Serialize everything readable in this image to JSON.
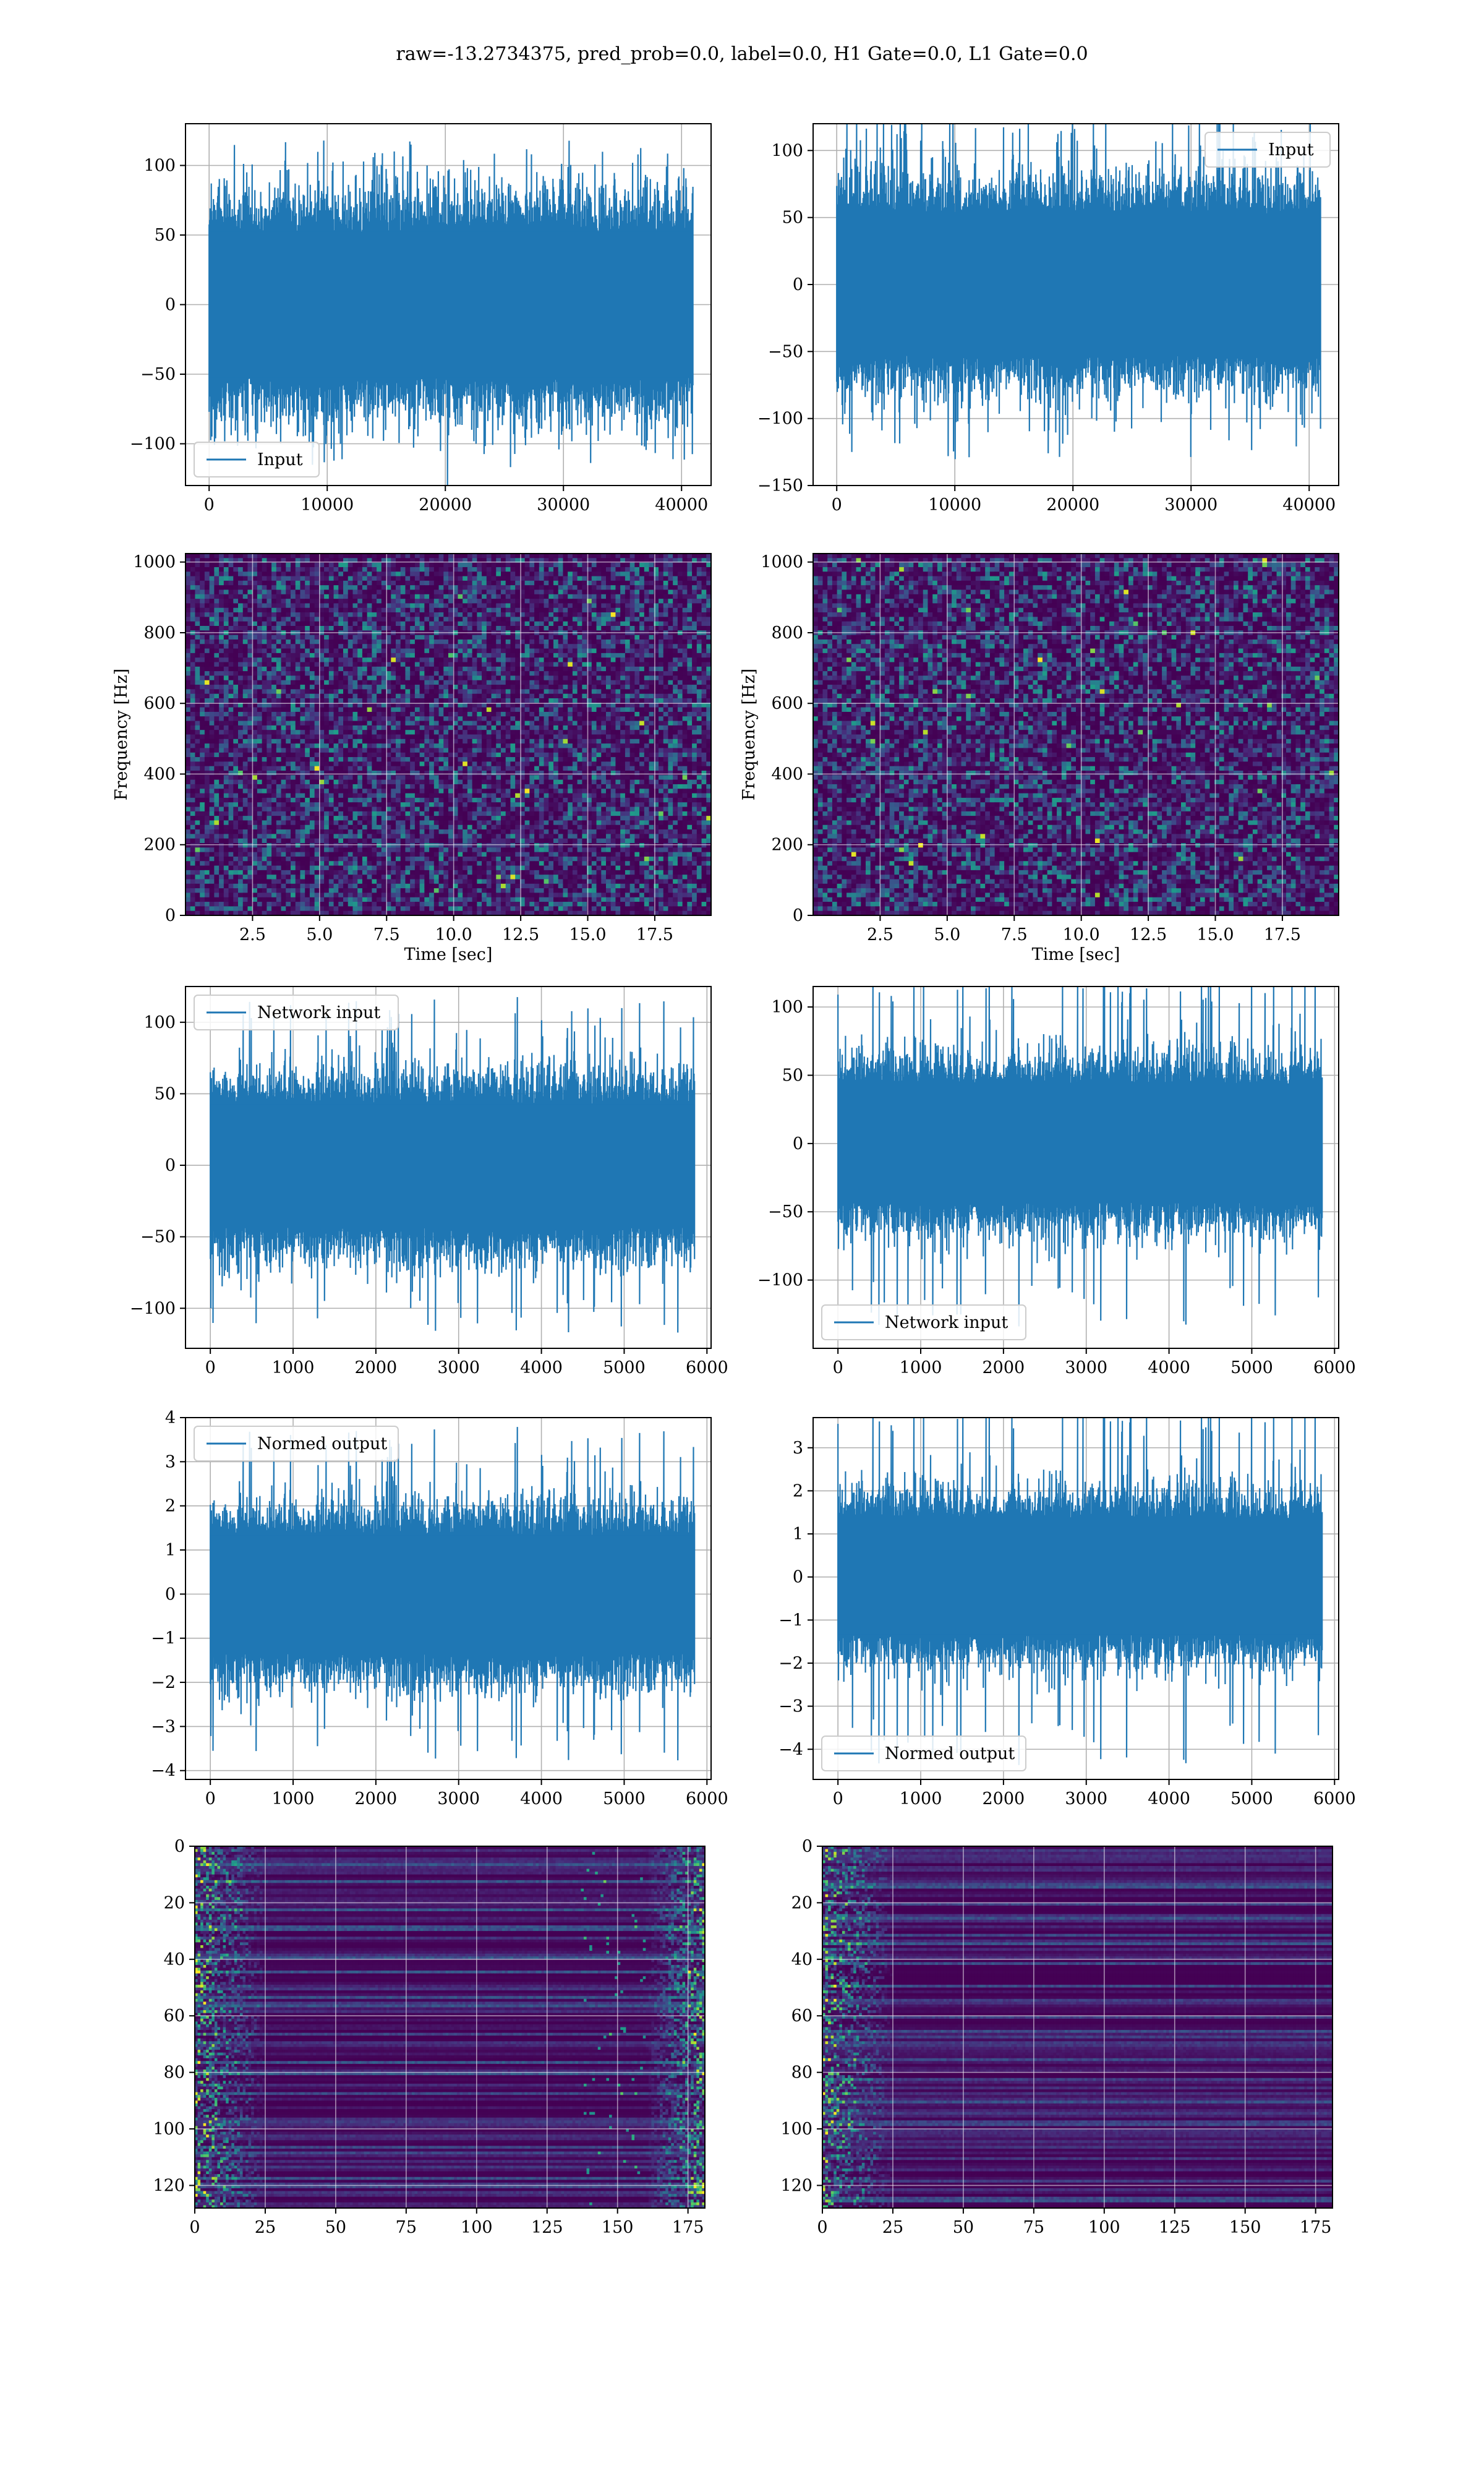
{
  "figure": {
    "title": "raw=-13.2734375, pred_prob=0.0, label=0.0, H1 Gate=0.0, L1 Gate=0.0",
    "line_color": "#1f77b4"
  },
  "chart_data": [
    {
      "id": "input-h1",
      "type": "line",
      "series": [
        {
          "name": "Input"
        }
      ],
      "legend": "lower-left",
      "grid": true,
      "xlim": [
        -2000,
        42500
      ],
      "xticks": [
        0,
        10000,
        20000,
        30000,
        40000
      ],
      "xticklabels": [
        "0",
        "10000",
        "20000",
        "30000",
        "40000"
      ],
      "ylim": [
        -130,
        130
      ],
      "yticks": [
        -100,
        -50,
        0,
        50,
        100
      ],
      "yticklabels": [
        "−100",
        "−50",
        "0",
        "50",
        "100"
      ],
      "x_range": [
        0,
        40960
      ],
      "n": 900,
      "amp": 55,
      "spike": 118,
      "seed": 11,
      "xlabel": "",
      "ylabel": ""
    },
    {
      "id": "input-l1",
      "type": "line",
      "series": [
        {
          "name": "Input"
        }
      ],
      "legend": "upper-right",
      "grid": true,
      "xlim": [
        -2000,
        42500
      ],
      "xticks": [
        0,
        10000,
        20000,
        30000,
        40000
      ],
      "xticklabels": [
        "0",
        "10000",
        "20000",
        "30000",
        "40000"
      ],
      "ylim": [
        -150,
        120
      ],
      "yticks": [
        -150,
        -100,
        -50,
        0,
        50,
        100
      ],
      "yticklabels": [
        "−150",
        "−100",
        "−50",
        "0",
        "50",
        "100"
      ],
      "x_range": [
        0,
        40960
      ],
      "n": 900,
      "amp": 55,
      "spike": 135,
      "seed": 23,
      "xlabel": "",
      "ylabel": ""
    },
    {
      "id": "spec-h1",
      "type": "heatmap",
      "grid": true,
      "xlim": [
        0,
        19.6
      ],
      "xticks": [
        2.5,
        5.0,
        7.5,
        10.0,
        12.5,
        15.0,
        17.5
      ],
      "xticklabels": [
        "2.5",
        "5.0",
        "7.5",
        "10.0",
        "12.5",
        "15.0",
        "17.5"
      ],
      "ylim": [
        0,
        1024
      ],
      "yticks": [
        0,
        200,
        400,
        600,
        800,
        1000
      ],
      "yticklabels": [
        "0",
        "200",
        "400",
        "600",
        "800",
        "1000"
      ],
      "xlabel": "Time [sec]",
      "ylabel": "Frequency [Hz]",
      "cols": 110,
      "rows": 80,
      "style": "noise",
      "seed": 31
    },
    {
      "id": "spec-l1",
      "type": "heatmap",
      "grid": true,
      "xlim": [
        0,
        19.6
      ],
      "xticks": [
        2.5,
        5.0,
        7.5,
        10.0,
        12.5,
        15.0,
        17.5
      ],
      "xticklabels": [
        "2.5",
        "5.0",
        "7.5",
        "10.0",
        "12.5",
        "15.0",
        "17.5"
      ],
      "ylim": [
        0,
        1024
      ],
      "yticks": [
        0,
        200,
        400,
        600,
        800,
        1000
      ],
      "yticklabels": [
        "0",
        "200",
        "400",
        "600",
        "800",
        "1000"
      ],
      "xlabel": "Time [sec]",
      "ylabel": "Frequency [Hz]",
      "cols": 110,
      "rows": 80,
      "style": "noise",
      "seed": 47
    },
    {
      "id": "network-input-h1",
      "type": "line",
      "series": [
        {
          "name": "Network input"
        }
      ],
      "legend": "upper-left",
      "grid": true,
      "xlim": [
        -300,
        6050
      ],
      "xticks": [
        0,
        1000,
        2000,
        3000,
        4000,
        5000,
        6000
      ],
      "xticklabels": [
        "0",
        "1000",
        "2000",
        "3000",
        "4000",
        "5000",
        "6000"
      ],
      "ylim": [
        -128,
        125
      ],
      "yticks": [
        -100,
        -50,
        0,
        50,
        100
      ],
      "yticklabels": [
        "−100",
        "−50",
        "0",
        "50",
        "100"
      ],
      "x_range": [
        0,
        5850
      ],
      "n": 900,
      "amp": 45,
      "spike": 118,
      "seed": 53,
      "xlabel": "",
      "ylabel": ""
    },
    {
      "id": "network-input-l1",
      "type": "line",
      "series": [
        {
          "name": "Network input"
        }
      ],
      "legend": "lower-left",
      "grid": true,
      "xlim": [
        -300,
        6050
      ],
      "xticks": [
        0,
        1000,
        2000,
        3000,
        4000,
        5000,
        6000
      ],
      "xticklabels": [
        "0",
        "1000",
        "2000",
        "3000",
        "4000",
        "5000",
        "6000"
      ],
      "ylim": [
        -150,
        115
      ],
      "yticks": [
        -100,
        -50,
        0,
        50,
        100
      ],
      "yticklabels": [
        "−100",
        "−50",
        "0",
        "50",
        "100"
      ],
      "x_range": [
        0,
        5850
      ],
      "n": 900,
      "amp": 45,
      "spike": 135,
      "seed": 61,
      "xlabel": "",
      "ylabel": ""
    },
    {
      "id": "normed-output-h1",
      "type": "line",
      "series": [
        {
          "name": "Normed output"
        }
      ],
      "legend": "upper-left",
      "grid": true,
      "xlim": [
        -300,
        6050
      ],
      "xticks": [
        0,
        1000,
        2000,
        3000,
        4000,
        5000,
        6000
      ],
      "xticklabels": [
        "0",
        "1000",
        "2000",
        "3000",
        "4000",
        "5000",
        "6000"
      ],
      "ylim": [
        -4.2,
        4.0
      ],
      "yticks": [
        -4,
        -3,
        -2,
        -1,
        0,
        1,
        2,
        3,
        4
      ],
      "yticklabels": [
        "−4",
        "−3",
        "−2",
        "−1",
        "0",
        "1",
        "2",
        "3",
        "4"
      ],
      "x_range": [
        0,
        5850
      ],
      "n": 900,
      "amp": 1.4,
      "spike": 3.8,
      "seed": 53,
      "xlabel": "",
      "ylabel": ""
    },
    {
      "id": "normed-output-l1",
      "type": "line",
      "series": [
        {
          "name": "Normed output"
        }
      ],
      "legend": "lower-left",
      "grid": true,
      "xlim": [
        -300,
        6050
      ],
      "xticks": [
        0,
        1000,
        2000,
        3000,
        4000,
        5000,
        6000
      ],
      "xticklabels": [
        "0",
        "1000",
        "2000",
        "3000",
        "4000",
        "5000",
        "6000"
      ],
      "ylim": [
        -4.7,
        3.7
      ],
      "yticks": [
        -4,
        -3,
        -2,
        -1,
        0,
        1,
        2,
        3
      ],
      "yticklabels": [
        "−4",
        "−3",
        "−2",
        "−1",
        "0",
        "1",
        "2",
        "3"
      ],
      "x_range": [
        0,
        5850
      ],
      "n": 900,
      "amp": 1.4,
      "spike": 4.4,
      "seed": 61,
      "xlabel": "",
      "ylabel": ""
    },
    {
      "id": "feature-map-h1",
      "type": "heatmap",
      "grid": true,
      "yinverted": true,
      "xlim": [
        0,
        181
      ],
      "xticks": [
        0,
        25,
        50,
        75,
        100,
        125,
        150,
        175
      ],
      "xticklabels": [
        "0",
        "25",
        "50",
        "75",
        "100",
        "125",
        "150",
        "175"
      ],
      "ylim": [
        0,
        128
      ],
      "yticks": [
        0,
        20,
        40,
        60,
        80,
        100,
        120
      ],
      "yticklabels": [
        "0",
        "20",
        "40",
        "60",
        "80",
        "100",
        "120"
      ],
      "xlabel": "",
      "ylabel": "",
      "cols": 181,
      "rows": 128,
      "style": "stripes-both",
      "seed": 71
    },
    {
      "id": "feature-map-l1",
      "type": "heatmap",
      "grid": true,
      "yinverted": true,
      "xlim": [
        0,
        181
      ],
      "xticks": [
        0,
        25,
        50,
        75,
        100,
        125,
        150,
        175
      ],
      "xticklabels": [
        "0",
        "25",
        "50",
        "75",
        "100",
        "125",
        "150",
        "175"
      ],
      "ylim": [
        0,
        128
      ],
      "yticks": [
        0,
        20,
        40,
        60,
        80,
        100,
        120
      ],
      "yticklabels": [
        "0",
        "20",
        "40",
        "60",
        "80",
        "100",
        "120"
      ],
      "xlabel": "",
      "ylabel": "",
      "cols": 181,
      "rows": 128,
      "style": "stripes-left",
      "seed": 83
    }
  ]
}
